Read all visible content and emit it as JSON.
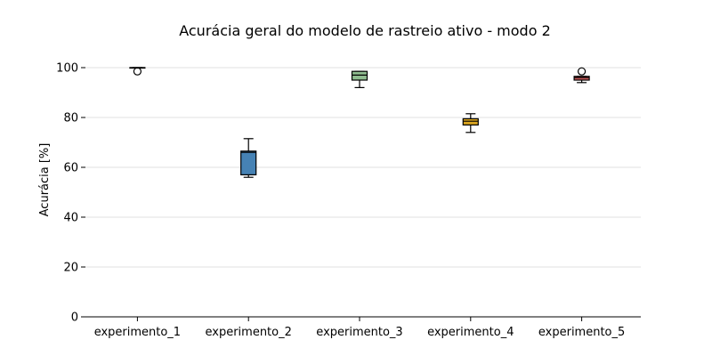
{
  "chart_data": {
    "type": "box",
    "title": "Acurácia geral do modelo de rastreio ativo - modo 2",
    "xlabel": "",
    "ylabel": "Acurácia [%]",
    "ylim": [
      0,
      110
    ],
    "yticks": [
      0,
      20,
      40,
      60,
      80,
      100
    ],
    "grid": "horizontal",
    "categories": [
      "experimento_1",
      "experimento_2",
      "experimento_3",
      "experimento_4",
      "experimento_5"
    ],
    "boxes": [
      {
        "category": "experimento_1",
        "whisker_low": 100,
        "q1": 100,
        "median": 100,
        "q3": 100,
        "whisker_high": 100,
        "outliers": [
          98.5
        ],
        "color": "#1f77b4"
      },
      {
        "category": "experimento_2",
        "whisker_low": 56,
        "q1": 57,
        "median": 66,
        "q3": 66.5,
        "whisker_high": 71.5,
        "outliers": [],
        "color": "#4682b4"
      },
      {
        "category": "experimento_3",
        "whisker_low": 92,
        "q1": 95,
        "median": 97,
        "q3": 98.5,
        "whisker_high": 98.5,
        "outliers": [],
        "color": "#8fbc8f"
      },
      {
        "category": "experimento_4",
        "whisker_low": 74,
        "q1": 77,
        "median": 78.5,
        "q3": 79.5,
        "whisker_high": 81.5,
        "outliers": [],
        "color": "#daa520"
      },
      {
        "category": "experimento_5",
        "whisker_low": 94,
        "q1": 95,
        "median": 96,
        "q3": 96.5,
        "whisker_high": 96.5,
        "outliers": [
          98.5
        ],
        "color": "#cd5c5c"
      }
    ]
  }
}
